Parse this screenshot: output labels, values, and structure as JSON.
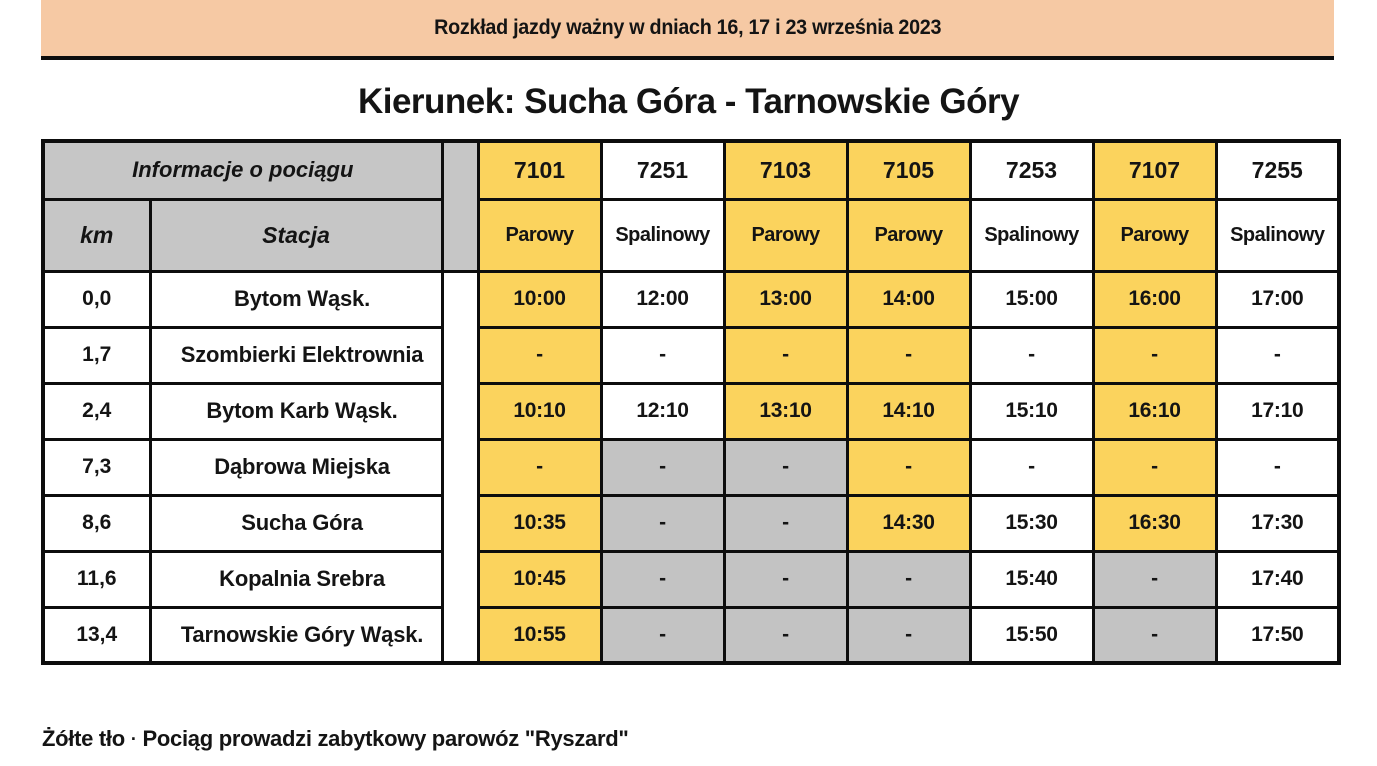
{
  "banner": {
    "text": "Rozkład jazdy ważny w dniach 16, 17 i 23 września 2023"
  },
  "title": "Kierunek: Sucha Góra - Tarnowskie Góry",
  "table": {
    "info_header": "Informacje o pociągu",
    "km_header": "km",
    "station_header": "Stacja",
    "trains": [
      {
        "number": "7101",
        "type": "Parowy",
        "color": "yellow"
      },
      {
        "number": "7251",
        "type": "Spalinowy",
        "color": "white"
      },
      {
        "number": "7103",
        "type": "Parowy",
        "color": "yellow"
      },
      {
        "number": "7105",
        "type": "Parowy",
        "color": "yellow"
      },
      {
        "number": "7253",
        "type": "Spalinowy",
        "color": "white"
      },
      {
        "number": "7107",
        "type": "Parowy",
        "color": "yellow"
      },
      {
        "number": "7255",
        "type": "Spalinowy",
        "color": "white"
      }
    ],
    "rows": [
      {
        "km": "0,0",
        "station": "Bytom Wąsk.",
        "times": [
          "10:00",
          "12:00",
          "13:00",
          "14:00",
          "15:00",
          "16:00",
          "17:00"
        ],
        "cells": [
          "yellow",
          "white",
          "yellow",
          "yellow",
          "white",
          "yellow",
          "white"
        ]
      },
      {
        "km": "1,7",
        "station": "Szombierki Elektrownia",
        "times": [
          "-",
          "-",
          "-",
          "-",
          "-",
          "-",
          "-"
        ],
        "cells": [
          "yellow",
          "white",
          "yellow",
          "yellow",
          "white",
          "yellow",
          "white"
        ]
      },
      {
        "km": "2,4",
        "station": "Bytom Karb Wąsk.",
        "times": [
          "10:10",
          "12:10",
          "13:10",
          "14:10",
          "15:10",
          "16:10",
          "17:10"
        ],
        "cells": [
          "yellow",
          "white",
          "yellow",
          "yellow",
          "white",
          "yellow",
          "white"
        ]
      },
      {
        "km": "7,3",
        "station": "Dąbrowa Miejska",
        "times": [
          "-",
          "-",
          "-",
          "-",
          "-",
          "-",
          "-"
        ],
        "cells": [
          "yellow",
          "gray",
          "gray",
          "yellow",
          "white",
          "yellow",
          "white"
        ]
      },
      {
        "km": "8,6",
        "station": "Sucha Góra",
        "times": [
          "10:35",
          "-",
          "-",
          "14:30",
          "15:30",
          "16:30",
          "17:30"
        ],
        "cells": [
          "yellow",
          "gray",
          "gray",
          "yellow",
          "white",
          "yellow",
          "white"
        ]
      },
      {
        "km": "11,6",
        "station": "Kopalnia Srebra",
        "times": [
          "10:45",
          "-",
          "-",
          "-",
          "15:40",
          "-",
          "17:40"
        ],
        "cells": [
          "yellow",
          "gray",
          "gray",
          "gray",
          "white",
          "gray",
          "white"
        ]
      },
      {
        "km": "13,4",
        "station": "Tarnowskie Góry Wąsk.",
        "times": [
          "10:55",
          "-",
          "-",
          "-",
          "15:50",
          "-",
          "17:50"
        ],
        "cells": [
          "yellow",
          "gray",
          "gray",
          "gray",
          "white",
          "gray",
          "white"
        ]
      }
    ]
  },
  "footer": {
    "label": "Żółte tło",
    "separator": "·",
    "text": "Pociąg prowadzi zabytkowy parowóz \"Ryszard\""
  },
  "colors": {
    "banner_peach": "#F6C9A4",
    "steam_yellow": "#FBD35D",
    "header_gray": "#C6C6C6",
    "no_service_gray": "#C3C3C3",
    "border_black": "#0d0d0d"
  }
}
